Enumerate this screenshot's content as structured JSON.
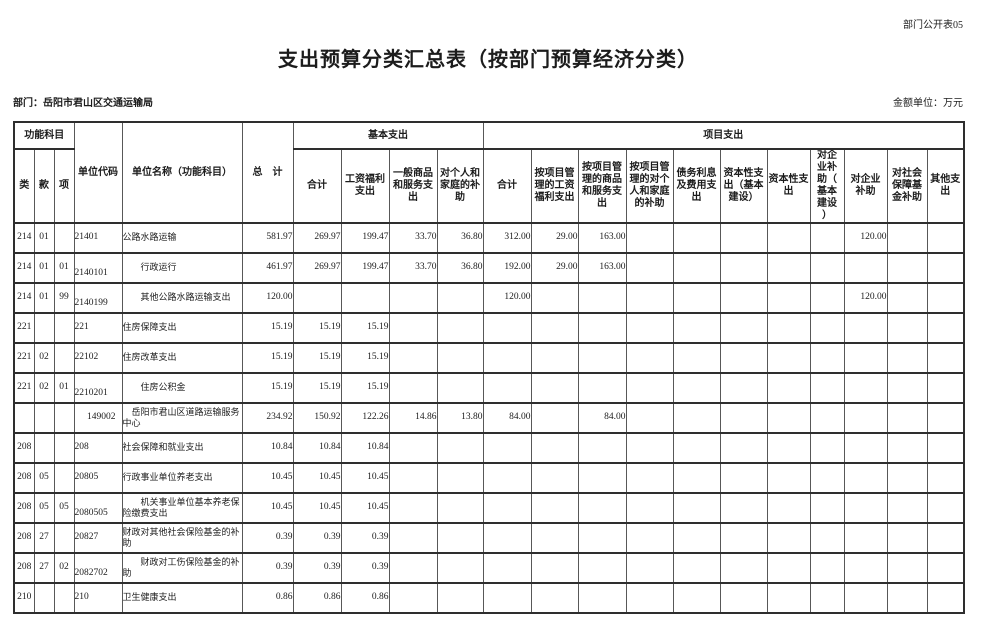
{
  "page": {
    "sheet_no": "部门公开表05",
    "title": "支出预算分类汇总表（按部门预算经济分类）",
    "department": "部门：岳阳市君山区交通运输局",
    "amount_unit": "金额单位：万元"
  },
  "table": {
    "header": {
      "func_group": "功能科目",
      "cls": "类",
      "sec": "款",
      "itm": "项",
      "unit_code": "单位代码",
      "unit_name": "单位名称（功能科目）",
      "grand_total": "总　计",
      "basic_group": "基本支出",
      "basic_total": "合计",
      "basic_wage": "工资福利\n支出",
      "basic_goods": "一般商品\n和服务支\n出",
      "basic_personal": "对个人和\n家庭的补\n助",
      "proj_group": "项目支出",
      "proj_total": "合计",
      "proj_wage": "按项目管\n理的工资\n福利支出",
      "proj_goods": "按项目管\n理的商品\n和服务支\n出",
      "proj_personal": "按项目管\n理的对个\n人和家庭\n的补助",
      "proj_debt": "债务利息\n及费用支\n出",
      "proj_capital_constr": "资本性支\n出（基本\n建设）",
      "proj_capital": "资本性支\n出",
      "proj_ent_constr": "对企\n业补\n助（\n基本\n建设\n）",
      "proj_ent": "对企业\n补助",
      "proj_social": "对社会\n保障基\n金补助",
      "proj_other": "其他支\n出"
    },
    "rows": [
      {
        "cls": "214",
        "sec": "01",
        "itm": "",
        "code": "21401",
        "name": "公路水路运输",
        "indent": 0,
        "values": [
          "581.97",
          "269.97",
          "199.47",
          "33.70",
          "36.80",
          "312.00",
          "29.00",
          "163.00",
          "",
          "",
          "",
          "",
          "",
          "120.00",
          "",
          ""
        ]
      },
      {
        "cls": "214",
        "sec": "01",
        "itm": "01",
        "code": "2140101",
        "name": "行政运行",
        "indent": 2,
        "values": [
          "461.97",
          "269.97",
          "199.47",
          "33.70",
          "36.80",
          "192.00",
          "29.00",
          "163.00",
          "",
          "",
          "",
          "",
          "",
          "",
          "",
          ""
        ]
      },
      {
        "cls": "214",
        "sec": "01",
        "itm": "99",
        "code": "2140199",
        "name": "其他公路水路运输支出",
        "indent": 2,
        "values": [
          "120.00",
          "",
          "",
          "",
          "",
          "120.00",
          "",
          "",
          "",
          "",
          "",
          "",
          "",
          "120.00",
          "",
          ""
        ]
      },
      {
        "cls": "221",
        "sec": "",
        "itm": "",
        "code": "221",
        "name": "住房保障支出",
        "indent": 0,
        "values": [
          "15.19",
          "15.19",
          "15.19",
          "",
          "",
          "",
          "",
          "",
          "",
          "",
          "",
          "",
          "",
          "",
          "",
          ""
        ]
      },
      {
        "cls": "221",
        "sec": "02",
        "itm": "",
        "code": "22102",
        "name": "住房改革支出",
        "indent": 0,
        "values": [
          "15.19",
          "15.19",
          "15.19",
          "",
          "",
          "",
          "",
          "",
          "",
          "",
          "",
          "",
          "",
          "",
          "",
          ""
        ]
      },
      {
        "cls": "221",
        "sec": "02",
        "itm": "01",
        "code": "2210201",
        "name": "住房公积金",
        "indent": 2,
        "values": [
          "15.19",
          "15.19",
          "15.19",
          "",
          "",
          "",
          "",
          "",
          "",
          "",
          "",
          "",
          "",
          "",
          "",
          ""
        ]
      },
      {
        "cls": "",
        "sec": "",
        "itm": "",
        "code": "149002",
        "name": "岳阳市君山区道路运输服务\n中心",
        "indent": 1,
        "values": [
          "234.92",
          "150.92",
          "122.26",
          "14.86",
          "13.80",
          "84.00",
          "",
          "84.00",
          "",
          "",
          "",
          "",
          "",
          "",
          "",
          ""
        ]
      },
      {
        "cls": "208",
        "sec": "",
        "itm": "",
        "code": "208",
        "name": "社会保障和就业支出",
        "indent": 0,
        "values": [
          "10.84",
          "10.84",
          "10.84",
          "",
          "",
          "",
          "",
          "",
          "",
          "",
          "",
          "",
          "",
          "",
          "",
          ""
        ]
      },
      {
        "cls": "208",
        "sec": "05",
        "itm": "",
        "code": "20805",
        "name": "行政事业单位养老支出",
        "indent": 0,
        "values": [
          "10.45",
          "10.45",
          "10.45",
          "",
          "",
          "",
          "",
          "",
          "",
          "",
          "",
          "",
          "",
          "",
          "",
          ""
        ]
      },
      {
        "cls": "208",
        "sec": "05",
        "itm": "05",
        "code": "2080505",
        "name": "机关事业单位基本养老保\n险缴费支出",
        "indent": 2,
        "values": [
          "10.45",
          "10.45",
          "10.45",
          "",
          "",
          "",
          "",
          "",
          "",
          "",
          "",
          "",
          "",
          "",
          "",
          ""
        ]
      },
      {
        "cls": "208",
        "sec": "27",
        "itm": "",
        "code": "20827",
        "name": "财政对其他社会保险基金的补\n助",
        "indent": 0,
        "values": [
          "0.39",
          "0.39",
          "0.39",
          "",
          "",
          "",
          "",
          "",
          "",
          "",
          "",
          "",
          "",
          "",
          "",
          ""
        ]
      },
      {
        "cls": "208",
        "sec": "27",
        "itm": "02",
        "code": "2082702",
        "name": "财政对工伤保险基金的补\n助",
        "indent": 2,
        "values": [
          "0.39",
          "0.39",
          "0.39",
          "",
          "",
          "",
          "",
          "",
          "",
          "",
          "",
          "",
          "",
          "",
          "",
          ""
        ]
      },
      {
        "cls": "210",
        "sec": "",
        "itm": "",
        "code": "210",
        "name": "卫生健康支出",
        "indent": 0,
        "values": [
          "0.86",
          "0.86",
          "0.86",
          "",
          "",
          "",
          "",
          "",
          "",
          "",
          "",
          "",
          "",
          "",
          "",
          ""
        ]
      }
    ]
  }
}
